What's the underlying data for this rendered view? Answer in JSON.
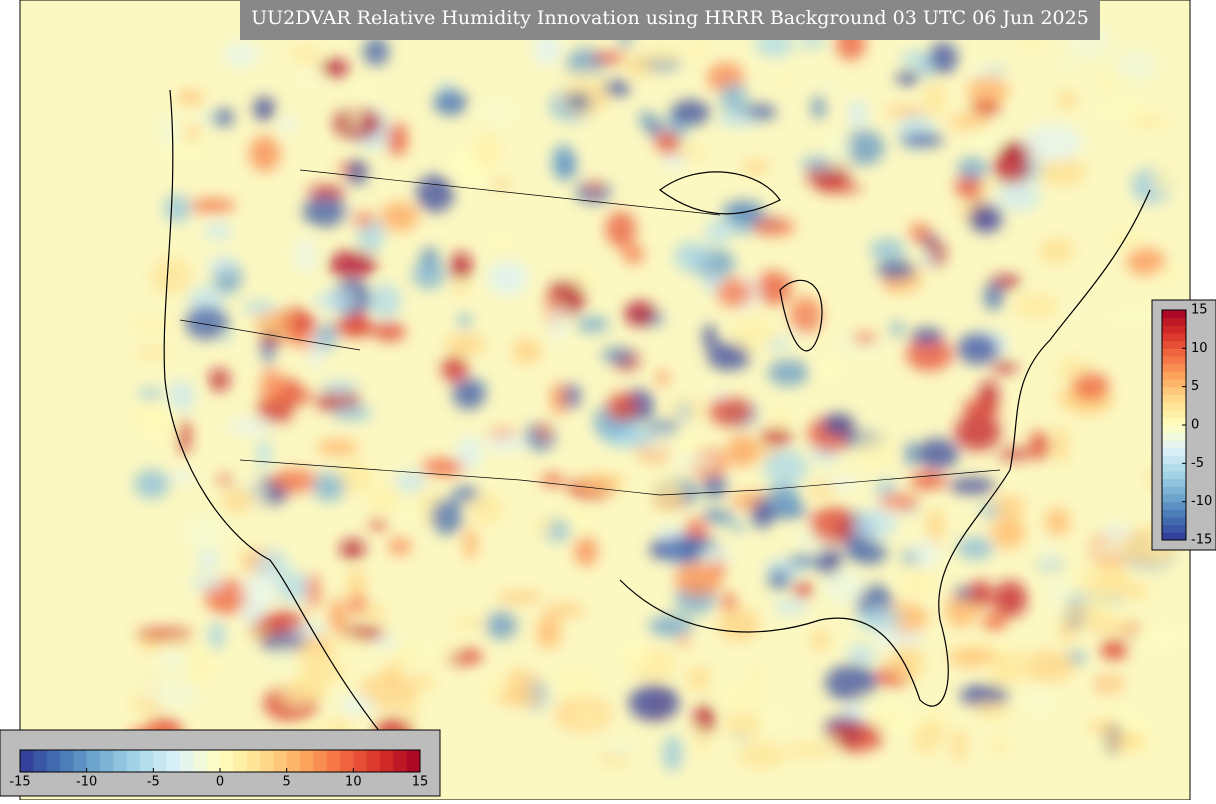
{
  "title": "UU2DVAR Relative Humidity Innovation using HRRR Background 03 UTC 06 Jun 2025",
  "colorbars": [
    {
      "orientation": "horizontal",
      "lim": [
        -15,
        15
      ],
      "ticks": [
        -15,
        -10,
        -5,
        0,
        5,
        10,
        15
      ],
      "colors": [
        "#313695",
        "#4575b4",
        "#74add1",
        "#abd9e9",
        "#e0f3f8",
        "#ffffbf",
        "#fee090",
        "#fdae61",
        "#f46d43",
        "#d73027",
        "#a50026"
      ]
    },
    {
      "orientation": "vertical",
      "lim": [
        -15,
        15
      ],
      "ticks": [
        -15,
        -10,
        -5,
        0,
        5,
        10,
        15
      ],
      "colors": [
        "#313695",
        "#4575b4",
        "#74add1",
        "#abd9e9",
        "#e0f3f8",
        "#ffffbf",
        "#fee090",
        "#fdae61",
        "#f46d43",
        "#d73027",
        "#a50026"
      ]
    }
  ]
}
